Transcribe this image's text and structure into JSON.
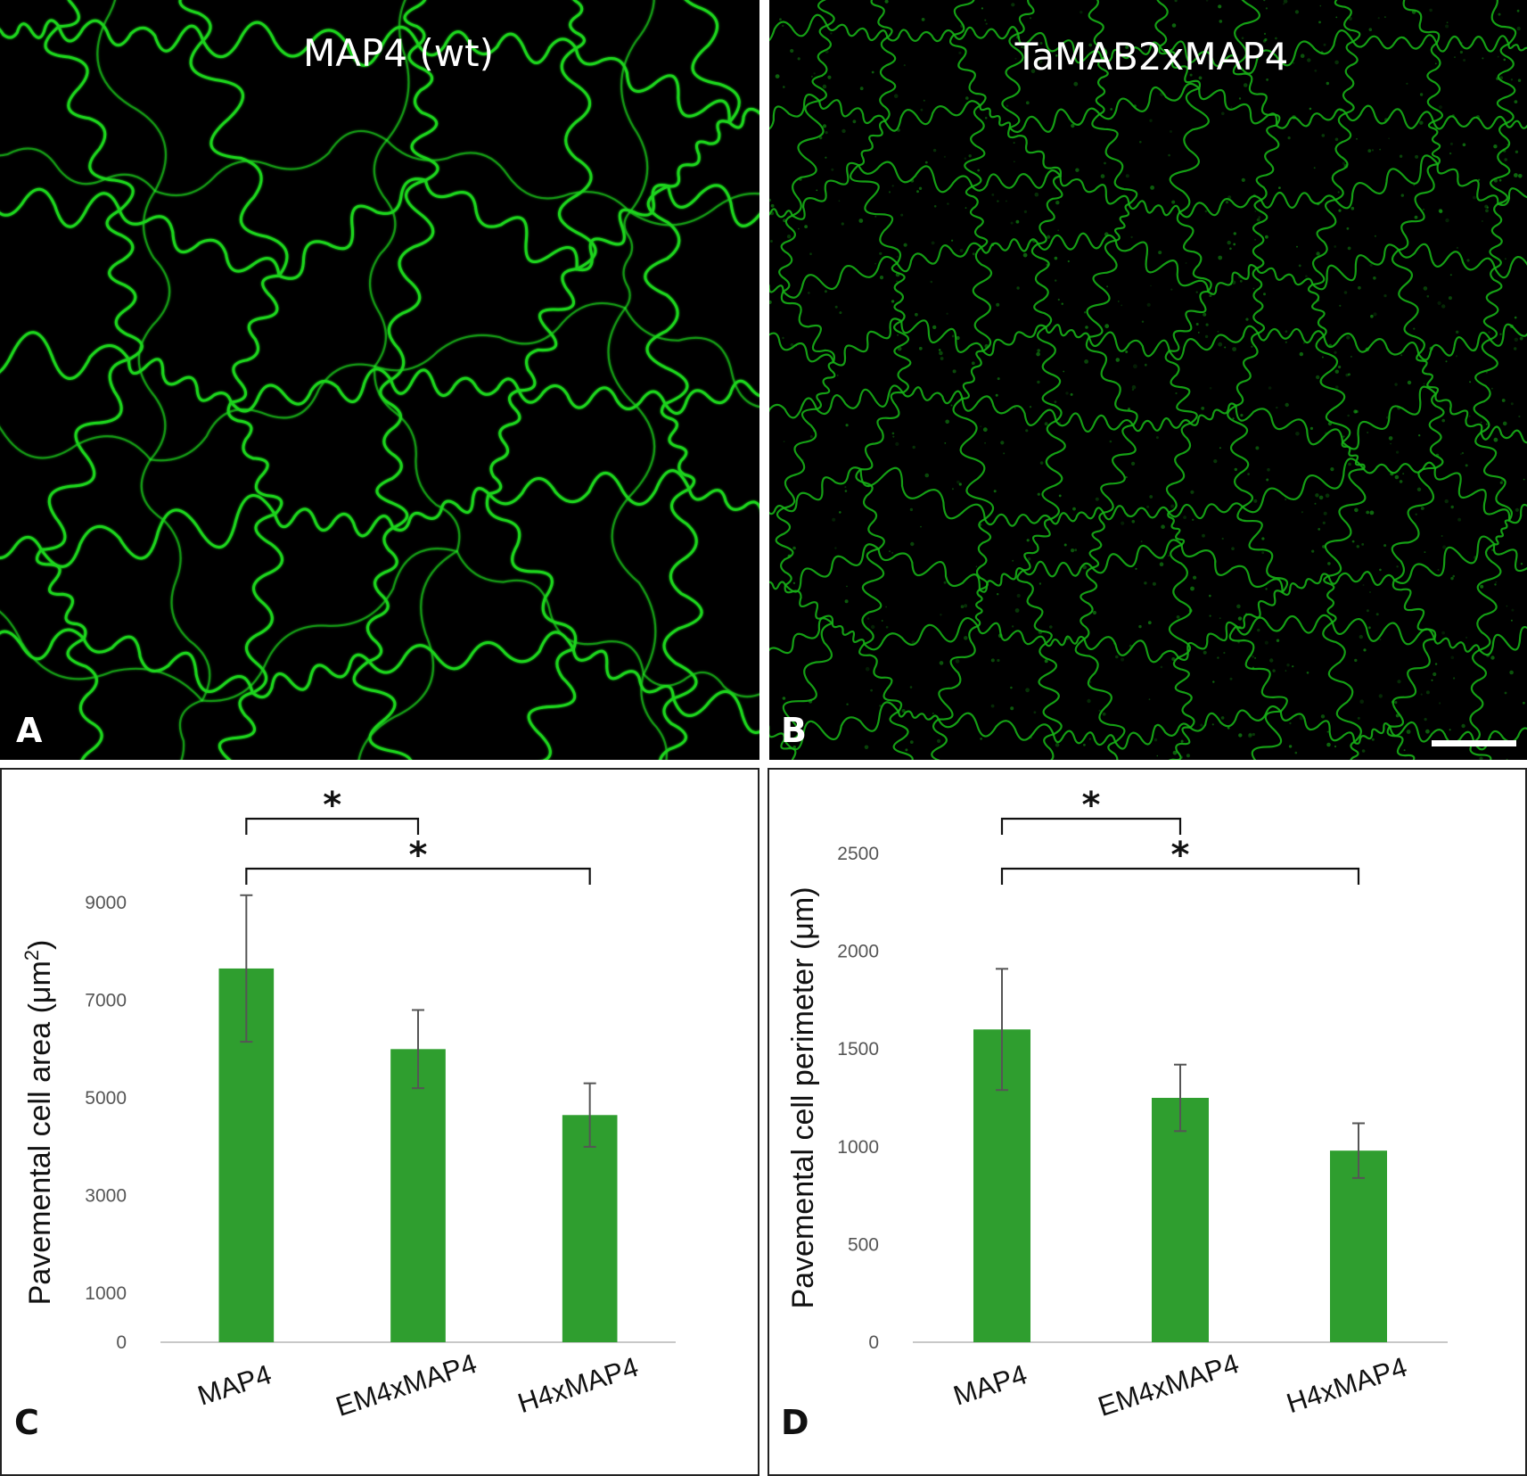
{
  "panels": {
    "A": {
      "letter": "A",
      "label": "MAP4 (wt)"
    },
    "B": {
      "letter": "B",
      "label": "TaMAB2xMAP4"
    },
    "C": {
      "letter": "C"
    },
    "D": {
      "letter": "D"
    }
  },
  "colors": {
    "bar": "#2f9e2f",
    "fluorescence": "#1fd21f",
    "fluorescence_dim": "#17b017",
    "errorbar": "#555555",
    "axis_text": "#555555",
    "background_micro": "#000000"
  },
  "chart_data": [
    {
      "type": "bar",
      "panel": "C",
      "categories": [
        "MAP4",
        "EM4xMAP4",
        "H4xMAP4"
      ],
      "values": [
        7650,
        6000,
        4650
      ],
      "errors": [
        1500,
        800,
        650
      ],
      "ylabel": "Pavemental cell area (μm",
      "ylabel_sup": "2",
      "ylabel_close": ")",
      "ylim": [
        0,
        9000
      ],
      "ticks": [
        0,
        1000,
        3000,
        5000,
        7000,
        9000
      ],
      "significance": [
        {
          "from": 0,
          "to": 1,
          "label": "*"
        },
        {
          "from": 0,
          "to": 2,
          "label": "*"
        }
      ]
    },
    {
      "type": "bar",
      "panel": "D",
      "categories": [
        "MAP4",
        "EM4xMAP4",
        "H4xMAP4"
      ],
      "values": [
        1600,
        1250,
        980
      ],
      "errors": [
        310,
        170,
        140
      ],
      "ylabel": "Pavemental cell perimeter (μm)",
      "ylim": [
        0,
        2500
      ],
      "ticks": [
        0,
        500,
        1000,
        1500,
        2000,
        2500
      ],
      "significance": [
        {
          "from": 0,
          "to": 1,
          "label": "*"
        },
        {
          "from": 0,
          "to": 2,
          "label": "*"
        }
      ]
    }
  ]
}
